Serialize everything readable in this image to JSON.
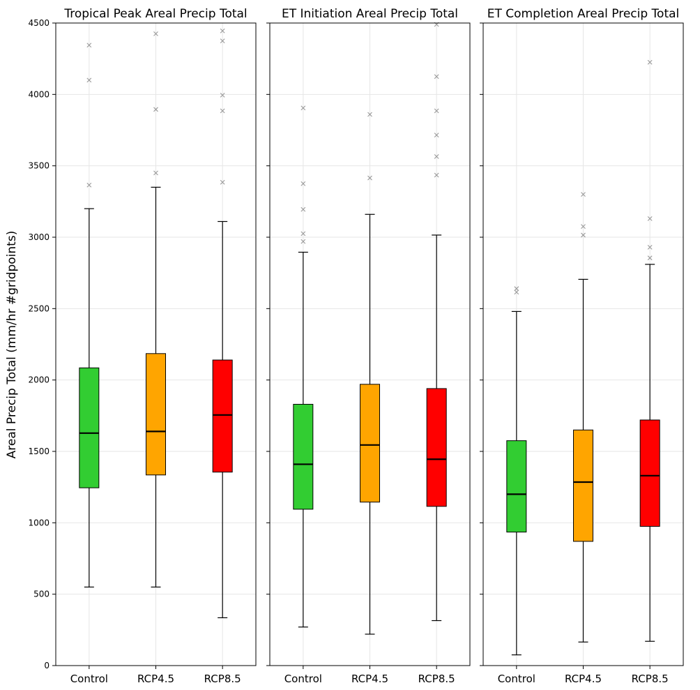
{
  "chart_data": {
    "type": "box",
    "ylabel": "Areal Precip Total (mm/hr #gridpoints)",
    "ylim": [
      0,
      4500
    ],
    "yticks": [
      0,
      500,
      1000,
      1500,
      2000,
      2500,
      3000,
      3500,
      4000,
      4500
    ],
    "categories": [
      "Control",
      "RCP4.5",
      "RCP8.5"
    ],
    "colors": {
      "Control": "#32cd32",
      "RCP4.5": "#ffa500",
      "RCP8.5": "#ff0000"
    },
    "grid": true,
    "outlier_marker": "x",
    "panels": [
      {
        "title": "Tropical Peak Areal Precip Total",
        "boxes": [
          {
            "name": "Control",
            "whisker_low": 550,
            "q1": 1245,
            "median": 1628,
            "q3": 2085,
            "whisker_high": 3200,
            "outliers": [
              3365,
              4100,
              4345
            ]
          },
          {
            "name": "RCP4.5",
            "whisker_low": 550,
            "q1": 1335,
            "median": 1640,
            "q3": 2185,
            "whisker_high": 3350,
            "outliers": [
              3450,
              3895,
              4425
            ]
          },
          {
            "name": "RCP8.5",
            "whisker_low": 335,
            "q1": 1355,
            "median": 1755,
            "q3": 2140,
            "whisker_high": 3110,
            "outliers": [
              3385,
              3885,
              3995,
              4375,
              4445
            ]
          }
        ]
      },
      {
        "title": "ET Initiation Areal Precip Total",
        "boxes": [
          {
            "name": "Control",
            "whisker_low": 270,
            "q1": 1095,
            "median": 1410,
            "q3": 1830,
            "whisker_high": 2895,
            "outliers": [
              2970,
              3025,
              3195,
              3375,
              3905
            ]
          },
          {
            "name": "RCP4.5",
            "whisker_low": 220,
            "q1": 1145,
            "median": 1545,
            "q3": 1970,
            "whisker_high": 3160,
            "outliers": [
              3415,
              3860
            ]
          },
          {
            "name": "RCP8.5",
            "whisker_low": 315,
            "q1": 1115,
            "median": 1445,
            "q3": 1940,
            "whisker_high": 3015,
            "outliers": [
              3435,
              3565,
              3715,
              3885,
              4125,
              4490
            ]
          }
        ]
      },
      {
        "title": "ET Completion Areal Precip Total",
        "boxes": [
          {
            "name": "Control",
            "whisker_low": 75,
            "q1": 935,
            "median": 1200,
            "q3": 1575,
            "whisker_high": 2480,
            "outliers": [
              2615,
              2640
            ]
          },
          {
            "name": "RCP4.5",
            "whisker_low": 165,
            "q1": 870,
            "median": 1285,
            "q3": 1650,
            "whisker_high": 2705,
            "outliers": [
              3015,
              3075,
              3300
            ]
          },
          {
            "name": "RCP8.5",
            "whisker_low": 170,
            "q1": 975,
            "median": 1330,
            "q3": 1720,
            "whisker_high": 2810,
            "outliers": [
              2855,
              2930,
              3130,
              4225
            ]
          }
        ]
      }
    ]
  }
}
